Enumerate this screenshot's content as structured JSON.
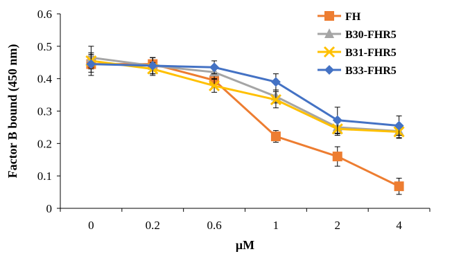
{
  "chart_data": {
    "type": "line",
    "title": "",
    "xlabel": "μM",
    "ylabel": "Factor B bound (450 nm)",
    "categories": [
      "0",
      "0.2",
      "0.6",
      "1",
      "2",
      "4"
    ],
    "ylim": [
      0,
      0.6
    ],
    "yticks": [
      "0",
      "0.1",
      "0.2",
      "0.3",
      "0.4",
      "0.5",
      "0.6"
    ],
    "grid": false,
    "legend_position": "top-right",
    "series": [
      {
        "name": "FH",
        "color": "#ED7D31",
        "marker": "square",
        "values": [
          0.445,
          0.445,
          0.395,
          0.222,
          0.16,
          0.068
        ],
        "errors": [
          0.025,
          0.02,
          0.02,
          0.018,
          0.03,
          0.025
        ]
      },
      {
        "name": "B30-FHR5",
        "color": "#A5A5A5",
        "marker": "triangle",
        "values": [
          0.465,
          0.44,
          0.42,
          0.345,
          0.25,
          0.238
        ],
        "errors": [
          0.035,
          0.025,
          0.02,
          0.02,
          0.02,
          0.02
        ]
      },
      {
        "name": "B31-FHR5",
        "color": "#FFC000",
        "marker": "x",
        "values": [
          0.455,
          0.43,
          0.378,
          0.335,
          0.245,
          0.236
        ],
        "errors": [
          0.02,
          0.02,
          0.02,
          0.025,
          0.02,
          0.02
        ]
      },
      {
        "name": "B33-FHR5",
        "color": "#4472C4",
        "marker": "diamond",
        "values": [
          0.445,
          0.44,
          0.435,
          0.39,
          0.272,
          0.255
        ],
        "errors": [
          0.035,
          0.025,
          0.02,
          0.025,
          0.04,
          0.03
        ]
      }
    ]
  }
}
